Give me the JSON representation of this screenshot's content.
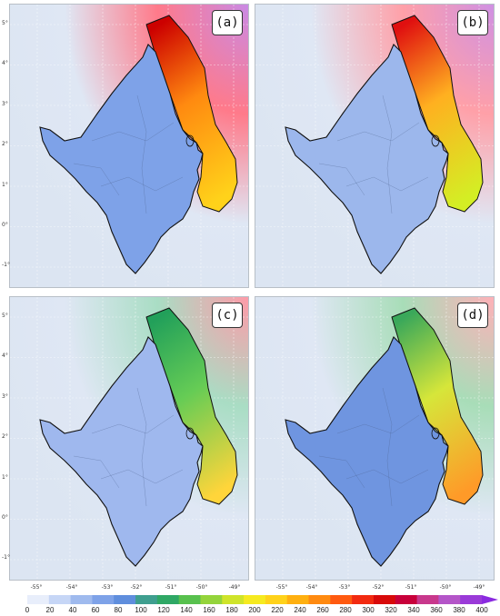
{
  "panels": [
    {
      "id": "a",
      "label": "(a)",
      "coast_peak": "#cc0000",
      "coast_mid": "#ff8a10",
      "coast_low": "#ffd21a",
      "offshore": "#ff7a8a",
      "far_offshore": "#c98ae6",
      "inland": "#7ea2e8"
    },
    {
      "id": "b",
      "label": "(b)",
      "coast_peak": "#e01010",
      "coast_mid": "#ffb020",
      "coast_low": "#d4ee24",
      "offshore": "#ffa0a8",
      "far_offshore": "#cf90e4",
      "inland": "#9cb7ec"
    },
    {
      "id": "c",
      "label": "(c)",
      "coast_peak": "#22a05a",
      "coast_mid": "#66cc55",
      "coast_low": "#ffd53a",
      "offshore": "#a9ddc4",
      "far_offshore": "#ff9aa8",
      "inland": "#9fb8ee"
    },
    {
      "id": "d",
      "label": "(d)",
      "coast_peak": "#3aa85a",
      "coast_mid": "#d6e63a",
      "coast_low": "#ff9a28",
      "offshore": "#a8ddb8",
      "far_offshore": "#ffb0b8",
      "inland": "#6f95e0"
    }
  ],
  "y_axis_labels": [
    "5°",
    "4°",
    "3°",
    "2°",
    "1°",
    "0°",
    "-1°"
  ],
  "x_axis_labels": [
    "-55°",
    "-54°",
    "-53°",
    "-52°",
    "-51°",
    "-50°",
    "-49°"
  ],
  "colorbar": {
    "ticks": [
      "0",
      "20",
      "40",
      "60",
      "80",
      "100",
      "120",
      "140",
      "160",
      "180",
      "200",
      "220",
      "240",
      "260",
      "280",
      "300",
      "320",
      "340",
      "360",
      "380",
      "400"
    ],
    "colors": [
      "#e8eefb",
      "#c6d6f6",
      "#9fbaee",
      "#7ea2e8",
      "#5f8edd",
      "#3f9f8f",
      "#2fa865",
      "#58c14e",
      "#94d43b",
      "#cfe42a",
      "#f6ea20",
      "#ffd21a",
      "#ffb010",
      "#ff8a10",
      "#ff5a10",
      "#f22a10",
      "#d80a0a",
      "#c8003a",
      "#c8388c",
      "#b455c8",
      "#9a3ad8"
    ]
  }
}
